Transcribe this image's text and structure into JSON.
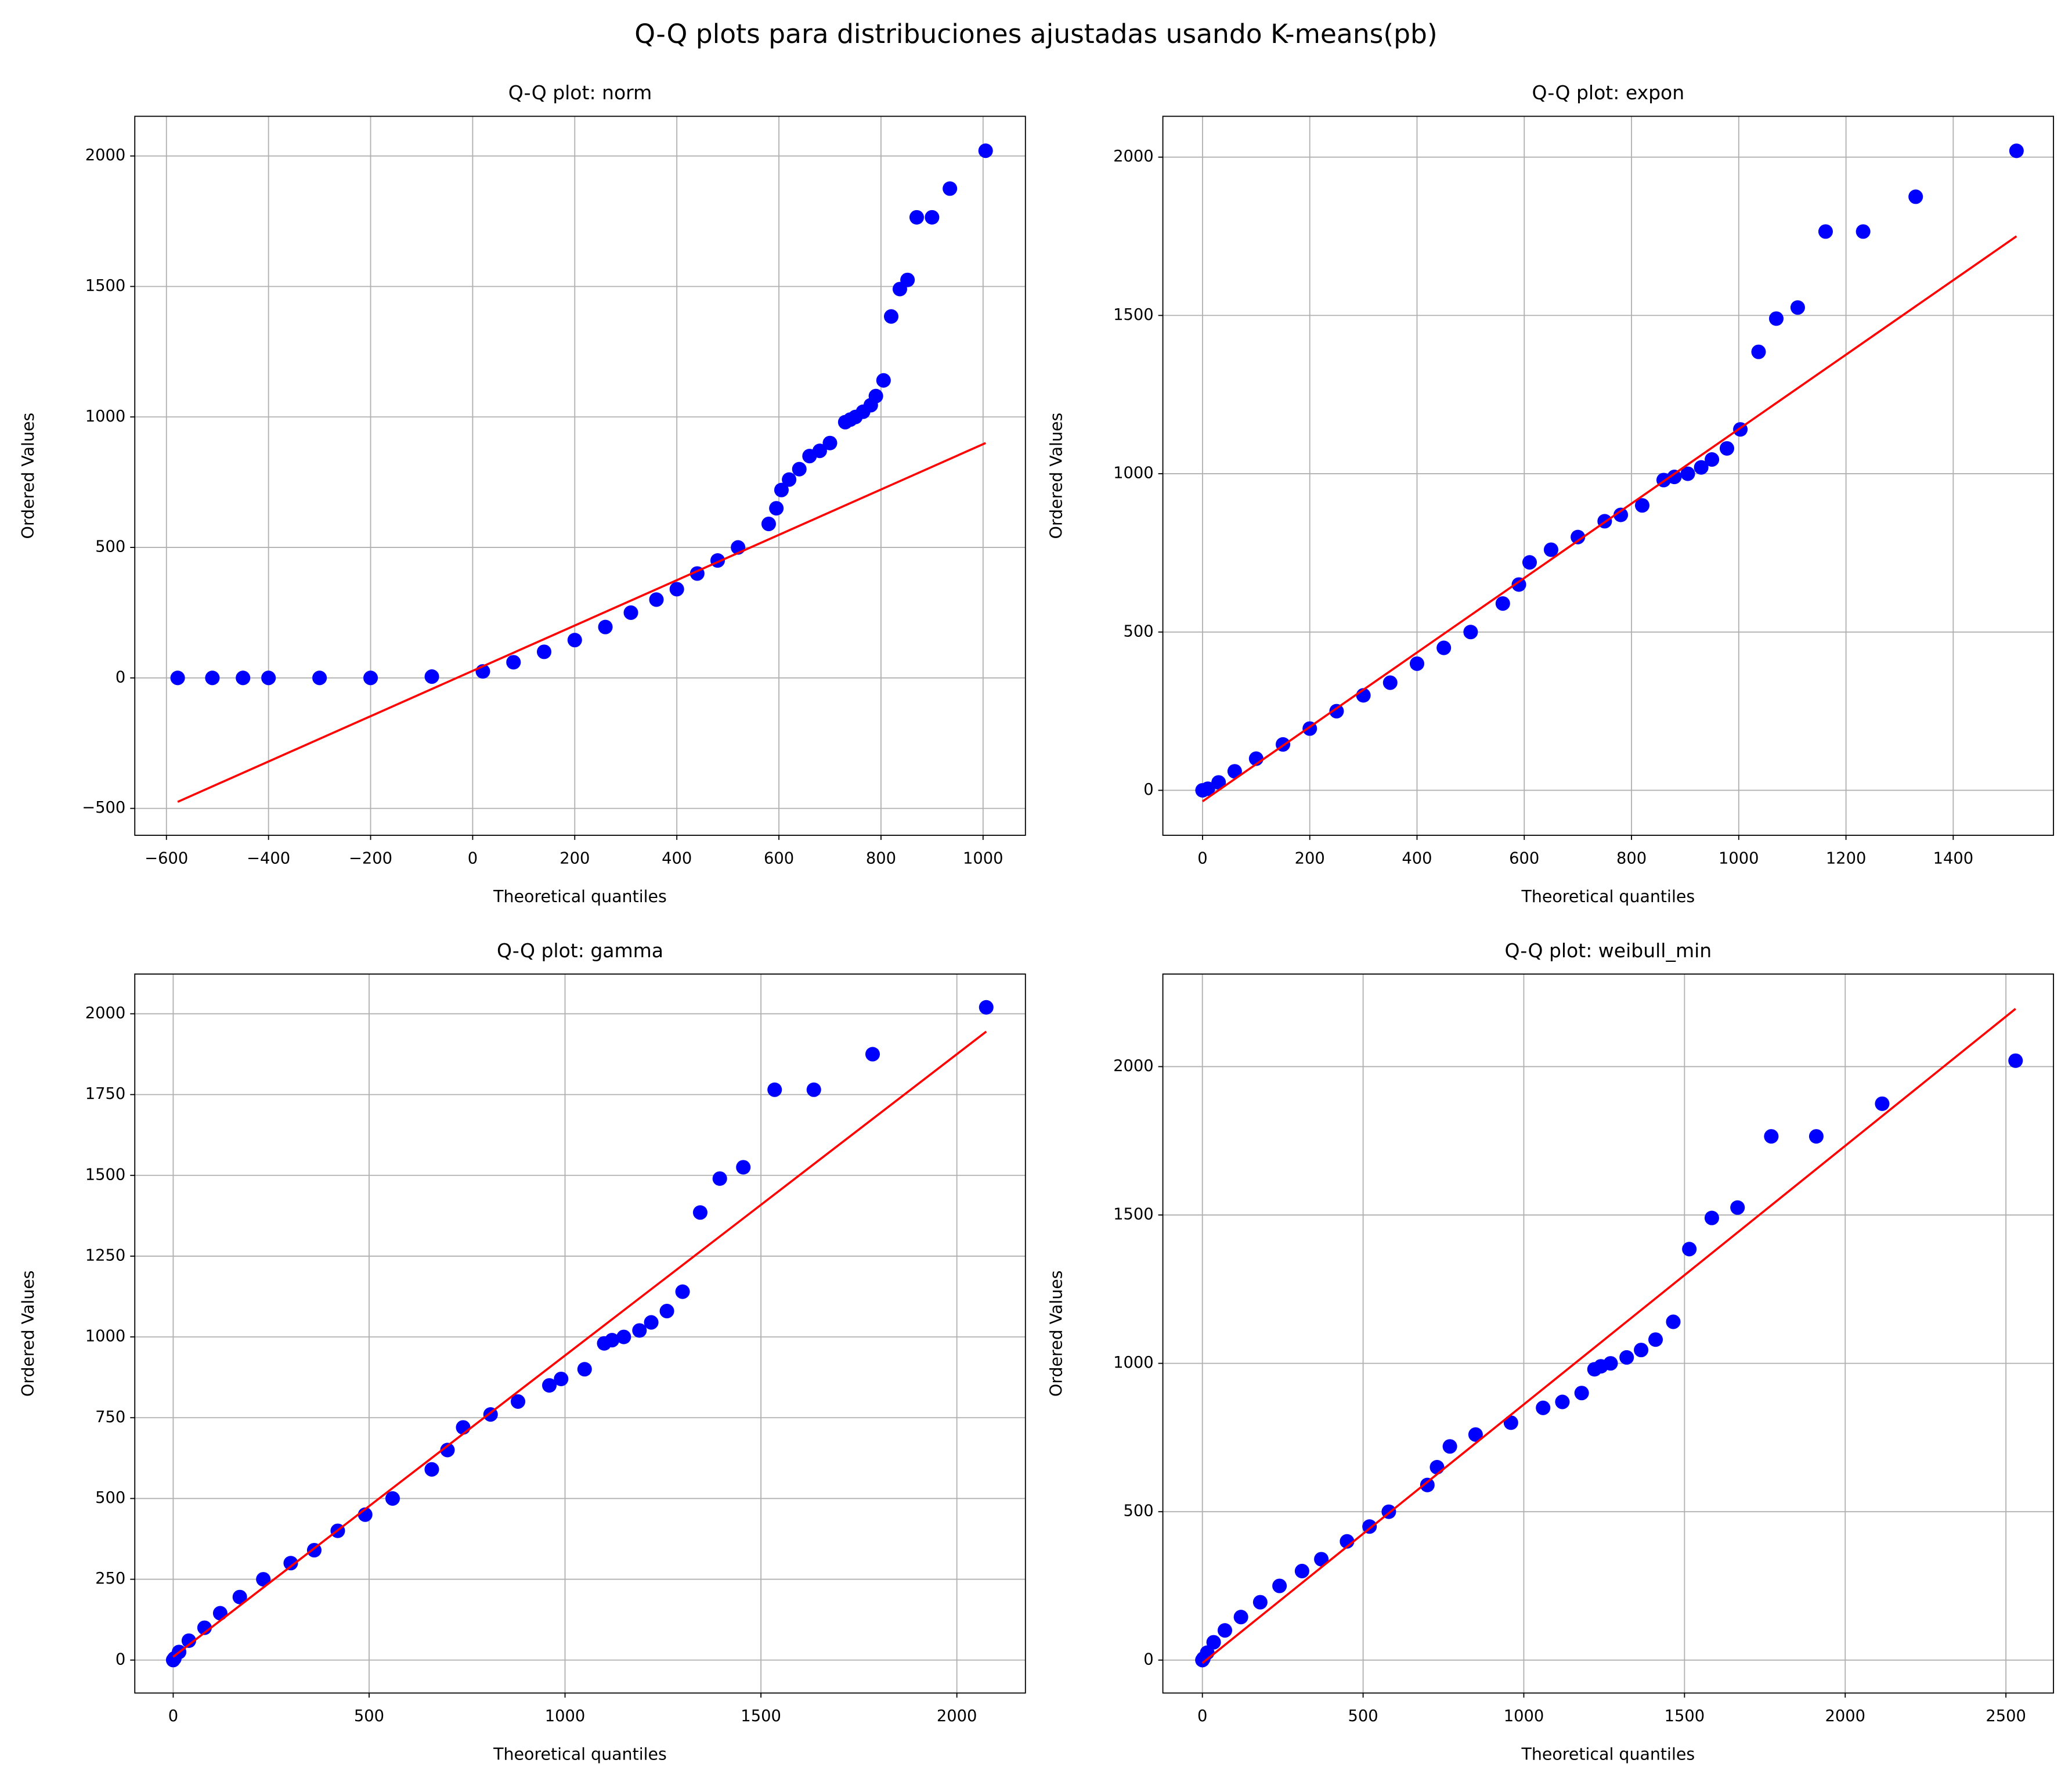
{
  "title": "Q-Q plots para distribuciones ajustadas usando K-means(pb)",
  "chart_data": [
    {
      "type": "scatter",
      "title": "Q-Q plot: norm",
      "xlabel": "Theoretical quantiles",
      "ylabel": "Ordered Values",
      "xlim": [
        -662,
        1083
      ],
      "ylim": [
        -603,
        2152
      ],
      "xticks": [
        {
          "value": -600,
          "label": "−600"
        },
        {
          "value": -400,
          "label": "−400"
        },
        {
          "value": -200,
          "label": "−200"
        },
        0,
        200,
        400,
        600,
        800,
        1000
      ],
      "yticks": [
        {
          "value": -500,
          "label": "−500"
        },
        0,
        500,
        1000,
        1500,
        2000
      ],
      "grid": true,
      "series": [
        {
          "kind": "scatter",
          "color": "#0000ff",
          "x": [
            1005,
            935,
            900,
            870,
            852,
            837,
            820,
            805,
            790,
            780,
            765,
            750,
            740,
            730,
            700,
            680,
            660,
            640,
            620,
            605,
            595,
            580,
            520,
            480,
            440,
            400,
            360,
            310,
            260,
            200,
            140,
            80,
            20,
            -80,
            -200,
            -300,
            -400,
            -450,
            -510,
            -578
          ],
          "values": [
            2020,
            1875,
            1765,
            1765,
            1525,
            1490,
            1385,
            1140,
            1080,
            1045,
            1020,
            1000,
            990,
            980,
            900,
            870,
            850,
            800,
            760,
            720,
            650,
            590,
            500,
            450,
            400,
            340,
            300,
            250,
            195,
            145,
            100,
            60,
            25,
            5,
            0,
            0,
            0,
            0,
            0,
            0
          ]
        },
        {
          "kind": "line",
          "color": "#ff0000",
          "x": [
            -578,
            1005
          ],
          "values": [
            -475,
            900
          ]
        }
      ]
    },
    {
      "type": "scatter",
      "title": "Q-Q plot: expon",
      "xlabel": "Theoretical quantiles",
      "ylabel": "Ordered Values",
      "xlim": [
        -74,
        1587
      ],
      "ylim": [
        -142,
        2129
      ],
      "xticks": [
        0,
        200,
        400,
        600,
        800,
        1000,
        1200,
        1400
      ],
      "yticks": [
        0,
        500,
        1000,
        1500,
        2000
      ],
      "grid": true,
      "series": [
        {
          "kind": "scatter",
          "color": "#0000ff",
          "x": [
            1518,
            1330,
            1232,
            1162,
            1110,
            1070,
            1037,
            1003,
            978,
            950,
            930,
            905,
            880,
            860,
            820,
            780,
            750,
            700,
            650,
            610,
            590,
            560,
            500,
            450,
            400,
            350,
            300,
            250,
            200,
            150,
            100,
            60,
            30,
            10,
            0
          ],
          "values": [
            2020,
            1875,
            1765,
            1765,
            1525,
            1490,
            1385,
            1140,
            1080,
            1045,
            1020,
            1000,
            990,
            980,
            900,
            870,
            850,
            800,
            760,
            720,
            650,
            590,
            500,
            450,
            400,
            340,
            300,
            250,
            195,
            145,
            100,
            60,
            25,
            5,
            0
          ]
        },
        {
          "kind": "line",
          "color": "#ff0000",
          "x": [
            0,
            1518
          ],
          "values": [
            -35,
            1750
          ]
        }
      ]
    },
    {
      "type": "scatter",
      "title": "Q-Q plot: gamma",
      "xlabel": "Theoretical quantiles",
      "ylabel": "Ordered Values",
      "xlim": [
        -98,
        2175
      ],
      "ylim": [
        -102,
        2123
      ],
      "xticks": [
        0,
        500,
        1000,
        1500,
        2000
      ],
      "yticks": [
        0,
        250,
        500,
        750,
        1000,
        1250,
        1500,
        1750,
        2000
      ],
      "grid": true,
      "series": [
        {
          "kind": "scatter",
          "color": "#0000ff",
          "x": [
            2075,
            1785,
            1635,
            1535,
            1455,
            1395,
            1345,
            1300,
            1260,
            1220,
            1190,
            1150,
            1120,
            1100,
            1050,
            990,
            960,
            880,
            810,
            740,
            700,
            660,
            560,
            490,
            420,
            360,
            300,
            230,
            170,
            120,
            80,
            40,
            15,
            3,
            0
          ],
          "values": [
            2020,
            1875,
            1765,
            1765,
            1525,
            1490,
            1385,
            1140,
            1080,
            1045,
            1020,
            1000,
            990,
            980,
            900,
            870,
            850,
            800,
            760,
            720,
            650,
            590,
            500,
            450,
            400,
            340,
            300,
            250,
            195,
            145,
            100,
            60,
            25,
            5,
            0
          ]
        },
        {
          "kind": "line",
          "color": "#ff0000",
          "x": [
            0,
            2075
          ],
          "values": [
            10,
            1945
          ]
        }
      ]
    },
    {
      "type": "scatter",
      "title": "Q-Q plot: weibull_min",
      "xlabel": "Theoretical quantiles",
      "ylabel": "Ordered Values",
      "xlim": [
        -123,
        2648
      ],
      "ylim": [
        -111,
        2312
      ],
      "xticks": [
        0,
        500,
        1000,
        1500,
        2000,
        2500
      ],
      "yticks": [
        0,
        500,
        1000,
        1500,
        2000
      ],
      "grid": true,
      "series": [
        {
          "kind": "scatter",
          "color": "#0000ff",
          "x": [
            2530,
            2115,
            1910,
            1770,
            1665,
            1585,
            1515,
            1465,
            1410,
            1365,
            1320,
            1270,
            1240,
            1220,
            1180,
            1120,
            1060,
            960,
            850,
            770,
            730,
            700,
            580,
            520,
            450,
            370,
            310,
            240,
            180,
            120,
            70,
            35,
            15,
            3,
            0
          ],
          "values": [
            2020,
            1875,
            1765,
            1765,
            1525,
            1490,
            1385,
            1140,
            1080,
            1045,
            1020,
            1000,
            990,
            980,
            900,
            870,
            850,
            800,
            760,
            720,
            650,
            590,
            500,
            450,
            400,
            340,
            300,
            250,
            195,
            145,
            100,
            60,
            25,
            5,
            0
          ]
        },
        {
          "kind": "line",
          "color": "#ff0000",
          "x": [
            0,
            2530
          ],
          "values": [
            -10,
            2195
          ]
        }
      ]
    }
  ]
}
